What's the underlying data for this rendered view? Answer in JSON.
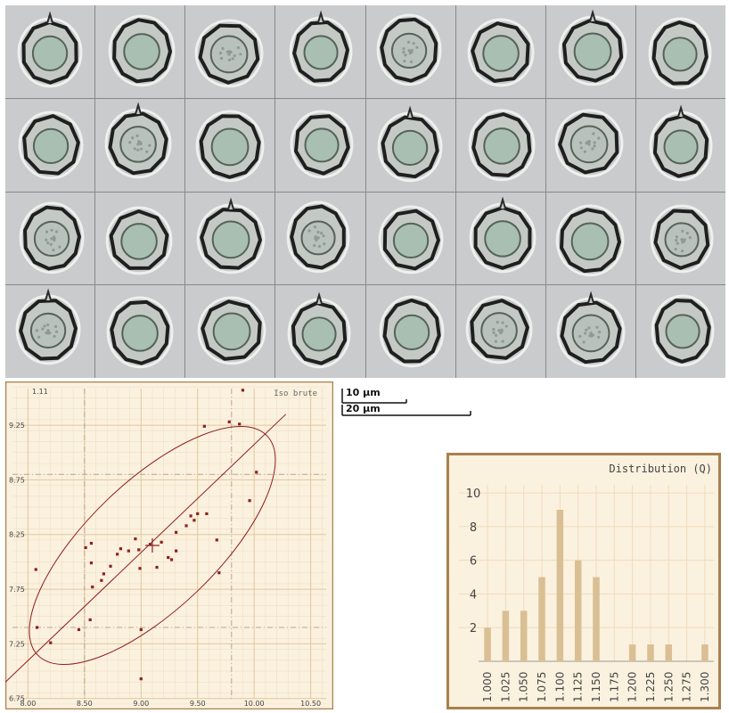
{
  "thumbnails": {
    "rows": 4,
    "cols": 8
  },
  "scale_bars": [
    {
      "label": "10 µm"
    },
    {
      "label": "20 µm"
    }
  ],
  "colors": {
    "chart_bg": "#fbf1df",
    "chart_border": "#a9804f",
    "grid": "#e7cfa6",
    "marker": "#8e1f1f",
    "hist_bar": "#d9bf93",
    "axis_text": "#444444"
  },
  "chart_data": [
    {
      "type": "scatter",
      "title": "Iso brute",
      "corner_label": "1.11",
      "xlabel": "",
      "ylabel": "",
      "xlim": [
        7.8,
        10.7
      ],
      "ylim": [
        6.65,
        9.65
      ],
      "xticks": [
        "8.00",
        "8.50",
        "9.00",
        "9.50",
        "10.00",
        "10.50"
      ],
      "yticks": [
        "6.75",
        "7.25",
        "7.75",
        "8.25",
        "8.75",
        "9.25"
      ],
      "grid": true,
      "mean": [
        9.1,
        8.15
      ],
      "points": [
        [
          8.07,
          7.93
        ],
        [
          8.08,
          7.4
        ],
        [
          8.2,
          7.26
        ],
        [
          8.45,
          7.38
        ],
        [
          8.51,
          8.13
        ],
        [
          8.55,
          7.47
        ],
        [
          8.56,
          7.99
        ],
        [
          8.56,
          8.17
        ],
        [
          8.57,
          7.77
        ],
        [
          8.65,
          7.83
        ],
        [
          8.67,
          7.89
        ],
        [
          8.73,
          7.96
        ],
        [
          8.79,
          8.07
        ],
        [
          8.82,
          8.12
        ],
        [
          8.89,
          8.1
        ],
        [
          8.95,
          8.21
        ],
        [
          8.98,
          8.11
        ],
        [
          8.99,
          7.94
        ],
        [
          9.0,
          7.38
        ],
        [
          9.0,
          6.93
        ],
        [
          9.08,
          8.16
        ],
        [
          9.14,
          7.95
        ],
        [
          9.18,
          8.18
        ],
        [
          9.24,
          8.04
        ],
        [
          9.27,
          8.02
        ],
        [
          9.31,
          8.1
        ],
        [
          9.31,
          8.27
        ],
        [
          9.4,
          8.33
        ],
        [
          9.44,
          8.42
        ],
        [
          9.47,
          8.38
        ],
        [
          9.5,
          8.44
        ],
        [
          9.56,
          9.24
        ],
        [
          9.58,
          8.44
        ],
        [
          9.67,
          8.2
        ],
        [
          9.69,
          7.9
        ],
        [
          9.78,
          9.28
        ],
        [
          9.87,
          9.26
        ],
        [
          9.9,
          9.57
        ],
        [
          9.96,
          8.56
        ],
        [
          10.02,
          8.82
        ]
      ],
      "refs_x": [
        8.5,
        9.8
      ],
      "refs_y": [
        7.4,
        8.8
      ]
    },
    {
      "type": "bar",
      "title": "Distribution (Q)",
      "xlabel": "",
      "ylabel": "",
      "categories": [
        "1.000",
        "1.025",
        "1.050",
        "1.075",
        "1.100",
        "1.125",
        "1.150",
        "1.175",
        "1.200",
        "1.225",
        "1.250",
        "1.275",
        "1.300"
      ],
      "x": [
        1.0,
        1.0125,
        1.025,
        1.0375,
        1.05,
        1.0625,
        1.075,
        1.0875,
        1.1,
        1.1125,
        1.125,
        1.1375,
        1.15,
        1.1625,
        1.175,
        1.1875,
        1.2,
        1.2125,
        1.225,
        1.2375,
        1.25,
        1.2625,
        1.275,
        1.2875,
        1.3
      ],
      "values": [
        2,
        0,
        3,
        0,
        3,
        0,
        5,
        0,
        9,
        0,
        6,
        0,
        5,
        0,
        0,
        0,
        1,
        0,
        1,
        0,
        1,
        0,
        0,
        0,
        1
      ],
      "yticks": [
        2,
        4,
        6,
        8,
        10
      ],
      "ylim": [
        0,
        10.8
      ],
      "xlim": [
        0.995,
        1.305
      ]
    }
  ]
}
